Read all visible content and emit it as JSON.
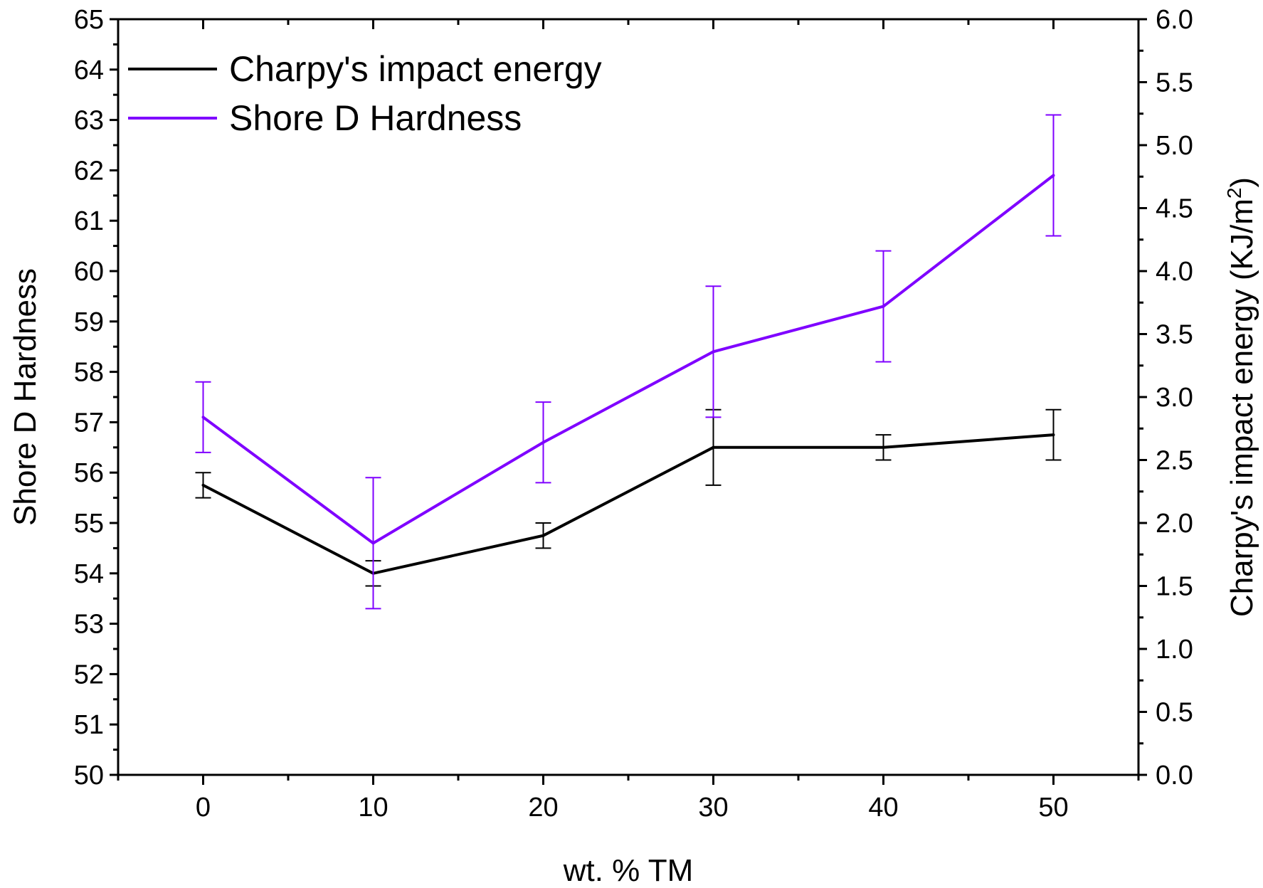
{
  "chart_data": {
    "type": "line",
    "xlabel": "wt. % TM",
    "ylabel_left": "Shore D Hardness",
    "ylabel_right": "Charpy's impact energy (KJ/m2)",
    "ylabel_right_parts": {
      "main": "Charpy's impact energy (KJ/m",
      "superscript": "2",
      "close": ")"
    },
    "xlim": [
      -5,
      55
    ],
    "ylim_left": [
      50,
      65
    ],
    "ylim_right": [
      0.0,
      6.0
    ],
    "x_ticks": [
      0,
      10,
      20,
      30,
      40,
      50
    ],
    "x_tick_labels": [
      "0",
      "10",
      "20",
      "30",
      "40",
      "50"
    ],
    "y_left_ticks": [
      50,
      51,
      52,
      53,
      54,
      55,
      56,
      57,
      58,
      59,
      60,
      61,
      62,
      63,
      64,
      65
    ],
    "y_left_tick_labels": [
      "50",
      "51",
      "52",
      "53",
      "54",
      "55",
      "56",
      "57",
      "58",
      "59",
      "60",
      "61",
      "62",
      "63",
      "64",
      "65"
    ],
    "y_right_ticks": [
      0.0,
      0.5,
      1.0,
      1.5,
      2.0,
      2.5,
      3.0,
      3.5,
      4.0,
      4.5,
      5.0,
      5.5,
      6.0
    ],
    "y_right_tick_labels": [
      "0.0",
      "0.5",
      "1.0",
      "1.5",
      "2.0",
      "2.5",
      "3.0",
      "3.5",
      "4.0",
      "4.5",
      "5.0",
      "5.5",
      "6.0"
    ],
    "grid": false,
    "legend_position": "top-left",
    "series": [
      {
        "name": "Charpy's impact energy",
        "axis": "right",
        "color": "#000000",
        "x": [
          0,
          10,
          20,
          30,
          40,
          50
        ],
        "y": [
          2.3,
          1.6,
          1.9,
          2.6,
          2.6,
          2.7
        ],
        "error": [
          0.1,
          0.1,
          0.1,
          0.3,
          0.1,
          0.2
        ]
      },
      {
        "name": "Shore D Hardness",
        "axis": "left",
        "color": "#7f00ff",
        "x": [
          0,
          10,
          20,
          30,
          40,
          50
        ],
        "y": [
          57.1,
          54.6,
          56.6,
          58.4,
          59.3,
          61.9
        ],
        "error": [
          0.7,
          1.3,
          0.8,
          1.3,
          1.1,
          1.2
        ]
      }
    ]
  }
}
